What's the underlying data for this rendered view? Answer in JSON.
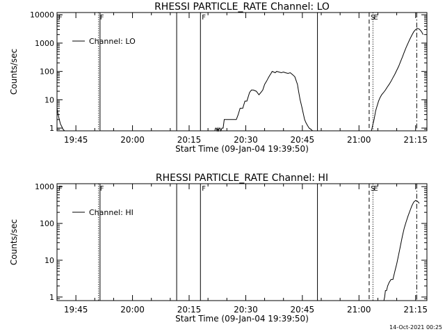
{
  "footer": {
    "timestamp": "14-Oct-2021 00:25"
  },
  "chart_data": [
    {
      "type": "line",
      "title": "RHESSI PARTICLE_RATE Channel: LO",
      "xlabel": "Start Time (09-Jan-04 19:39:50)",
      "ylabel": "Counts/sec",
      "yscale": "log",
      "ylim": [
        0.8,
        12000
      ],
      "xlim": [
        0,
        98
      ],
      "xticks": [
        5,
        20,
        35,
        50,
        65,
        80,
        95
      ],
      "xticklabels": [
        "19:45",
        "20:00",
        "20:15",
        "20:30",
        "20:45",
        "21:00",
        "21:15"
      ],
      "yticks": [
        1,
        10,
        100,
        1000,
        10000
      ],
      "yticklabels": [
        "1",
        "10",
        "100",
        "1000",
        "10000"
      ],
      "grid": false,
      "legend": {
        "position": "top-left",
        "entries": [
          "Channel: LO"
        ]
      },
      "series": [
        {
          "name": "Channel: LO",
          "x": [
            0.0,
            0.3,
            0.6,
            0.9,
            1.3,
            1.6,
            2.0
          ],
          "y": [
            5.0,
            3.0,
            2.0,
            1.4,
            1.1,
            0.9,
            0.8
          ]
        },
        {
          "name": "Channel: LO",
          "x": [
            41.8,
            42.0,
            42.2,
            42.4,
            42.6,
            42.8,
            43.0,
            43.2,
            43.4,
            43.7,
            44.0,
            44.3,
            44.6,
            45.0,
            45.4,
            46.0,
            46.5,
            47.0,
            47.5,
            48.0,
            48.5,
            48.8,
            49.2,
            49.8,
            50.3,
            51.0,
            51.5,
            52.0,
            52.8,
            53.5,
            54.0,
            54.5,
            55.0,
            55.5,
            56.0,
            56.3,
            56.7,
            57.0,
            57.4,
            57.8,
            58.2,
            58.8,
            59.4,
            60.0,
            60.5,
            61.2,
            61.8,
            62.5,
            63.0,
            63.3,
            63.7,
            64.0,
            64.4,
            64.8,
            65.2,
            65.6,
            66.0,
            66.4,
            66.8,
            67.3,
            67.7,
            68.0,
            68.4
          ],
          "y": [
            0.8,
            1,
            1,
            0.8,
            1,
            0.8,
            1,
            1,
            0.8,
            1,
            1,
            2,
            2,
            2,
            2,
            2,
            2,
            2,
            2,
            3,
            5,
            5,
            5,
            9,
            9,
            18,
            22,
            22,
            20,
            15,
            18,
            22,
            35,
            45,
            60,
            70,
            85,
            100,
            95,
            90,
            100,
            95,
            90,
            95,
            90,
            85,
            90,
            75,
            65,
            50,
            35,
            20,
            10,
            6,
            3.5,
            2,
            1.5,
            1.2,
            1.0,
            0.9,
            0.8,
            0.8,
            0.8
          ]
        },
        {
          "name": "Channel: LO",
          "x": [
            83.3,
            83.6,
            84.0,
            84.4,
            84.8,
            85.2,
            85.6,
            86.0,
            86.5,
            87.0,
            87.5,
            88.0,
            88.5,
            89.0,
            89.5,
            90.0,
            90.5,
            91.0,
            91.5,
            92.0,
            92.5,
            93.0,
            93.5,
            94.0,
            94.5,
            95.0,
            95.5,
            96.0,
            96.5,
            97.0
          ],
          "y": [
            0.8,
            1.2,
            2,
            4,
            6,
            9,
            12,
            15,
            18,
            22,
            28,
            35,
            45,
            60,
            80,
            110,
            150,
            220,
            320,
            480,
            700,
            1000,
            1400,
            1900,
            2500,
            3000,
            3300,
            3100,
            2600,
            2000
          ]
        }
      ],
      "vlines": [
        {
          "x": 11.0,
          "style": "dotted",
          "label": "F"
        },
        {
          "x": 11.4,
          "style": "solid",
          "label": ""
        },
        {
          "x": 31.7,
          "style": "solid",
          "label": ""
        },
        {
          "x": 38.0,
          "style": "solid",
          "label": "F"
        },
        {
          "x": 69.0,
          "style": "solid",
          "label": ""
        },
        {
          "x": 82.7,
          "style": "dashed",
          "label": "S"
        },
        {
          "x": 83.7,
          "style": "dotted",
          "label": "E"
        },
        {
          "x": 95.3,
          "style": "dashdot",
          "label": ""
        }
      ],
      "topmarks": [
        {
          "x": 0.4,
          "label": "F"
        }
      ]
    },
    {
      "type": "line",
      "title": "RHESSI PARTICLE_RATE Channel: HI",
      "xlabel": "Start Time (09-Jan-04 19:39:50)",
      "ylabel": "Counts/sec",
      "yscale": "log",
      "ylim": [
        0.8,
        1200
      ],
      "xlim": [
        0,
        98
      ],
      "xticks": [
        5,
        20,
        35,
        50,
        65,
        80,
        95
      ],
      "xticklabels": [
        "19:45",
        "20:00",
        "20:15",
        "20:30",
        "20:45",
        "21:00",
        "21:15"
      ],
      "yticks": [
        1,
        10,
        100,
        1000
      ],
      "yticklabels": [
        "1",
        "10",
        "100",
        "1000"
      ],
      "grid": false,
      "legend": {
        "position": "top-left",
        "entries": [
          "Channel: HI"
        ]
      },
      "series": [
        {
          "name": "Channel: HI",
          "x": [
            86.6,
            86.8,
            87.0,
            87.3,
            87.6,
            88.0,
            88.5,
            89.0,
            89.5,
            90.0,
            90.5,
            91.0,
            91.5,
            92.0,
            92.5,
            93.0,
            93.5,
            94.0,
            94.5,
            95.0,
            95.5,
            96.0
          ],
          "y": [
            0.8,
            1.0,
            1.5,
            1.5,
            2,
            2.5,
            3,
            3,
            5,
            8,
            14,
            25,
            45,
            75,
            110,
            160,
            220,
            300,
            380,
            420,
            400,
            350
          ]
        }
      ],
      "vlines": [
        {
          "x": 11.0,
          "style": "dotted",
          "label": "F"
        },
        {
          "x": 11.4,
          "style": "solid",
          "label": ""
        },
        {
          "x": 31.7,
          "style": "solid",
          "label": ""
        },
        {
          "x": 38.0,
          "style": "solid",
          "label": "F"
        },
        {
          "x": 69.0,
          "style": "solid",
          "label": ""
        },
        {
          "x": 82.7,
          "style": "dashed",
          "label": "S"
        },
        {
          "x": 83.7,
          "style": "dotted",
          "label": "E"
        },
        {
          "x": 95.3,
          "style": "dashdot",
          "label": ""
        }
      ],
      "topmarks": [
        {
          "x": 0.4,
          "label": "F"
        }
      ]
    }
  ]
}
